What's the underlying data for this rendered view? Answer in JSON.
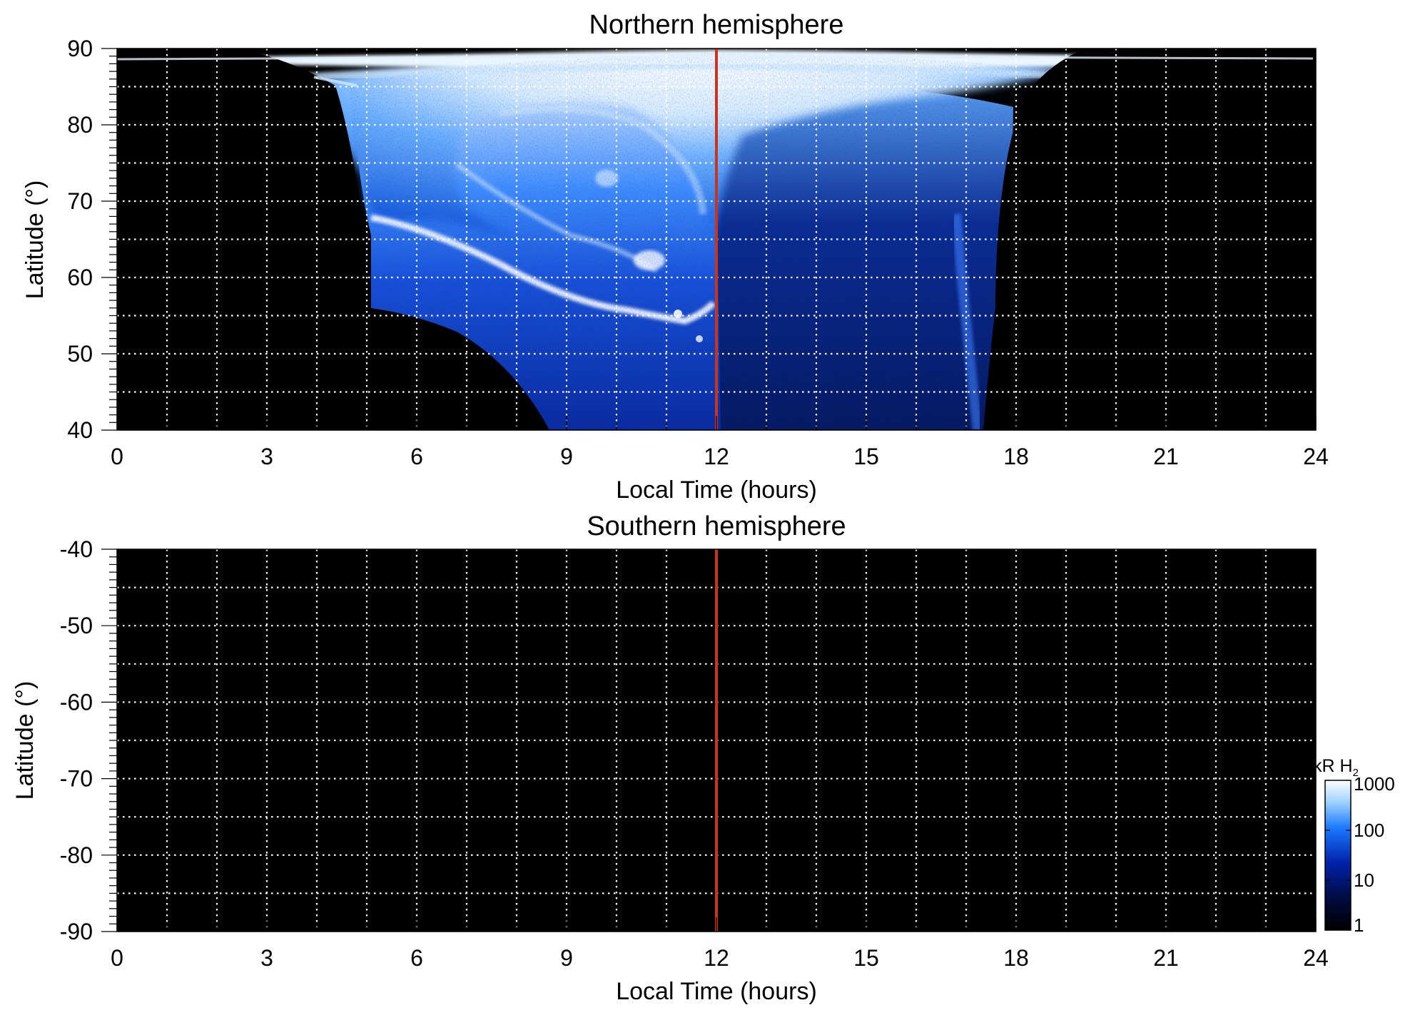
{
  "chart_data": [
    {
      "type": "heatmap",
      "title": "Northern hemisphere",
      "xlabel": "Local Time (hours)",
      "ylabel": "Latitude (°)",
      "xlim": [
        0,
        24
      ],
      "ylim": [
        40,
        90
      ],
      "xticks": [
        "0",
        "3",
        "6",
        "9",
        "12",
        "15",
        "18",
        "21",
        "24"
      ],
      "yticks": [
        "40",
        "50",
        "60",
        "70",
        "80",
        "90"
      ],
      "grid": true,
      "background": "#000000",
      "reference_line": {
        "x": 12,
        "color": "#c8341c"
      },
      "emission_region": {
        "description": "auroral emission polar projection",
        "local_time_range": [
          3.8,
          19.0
        ],
        "low_latitude_cutoff_curve": [
          [
            5.1,
            56
          ],
          [
            6.5,
            54
          ],
          [
            7.5,
            51.5
          ],
          [
            8.5,
            46
          ],
          [
            9,
            40
          ]
        ],
        "features": [
          {
            "kind": "main oval arc",
            "points": [
              [
                5.0,
                67.5
              ],
              [
                6.0,
                66
              ],
              [
                7.5,
                62
              ],
              [
                9.0,
                57
              ],
              [
                10.5,
                55
              ],
              [
                11.5,
                54.5
              ],
              [
                12.0,
                56
              ]
            ]
          },
          {
            "kind": "bright cusp spot",
            "points": [
              [
                11.0,
                62.5
              ]
            ]
          }
        ]
      }
    },
    {
      "type": "heatmap",
      "title": "Southern hemisphere",
      "xlabel": "Local Time (hours)",
      "ylabel": "Latitude (°)",
      "xlim": [
        0,
        24
      ],
      "ylim": [
        -90,
        -40
      ],
      "xticks": [
        "0",
        "3",
        "6",
        "9",
        "12",
        "15",
        "18",
        "21",
        "24"
      ],
      "yticks": [
        "-40",
        "-50",
        "-60",
        "-70",
        "-80",
        "-90"
      ],
      "grid": true,
      "background": "#000000",
      "reference_line": {
        "x": 12,
        "color": "#c8341c"
      }
    }
  ],
  "colorbar": {
    "label_main": "kR H",
    "label_sub": "2",
    "ticks": [
      "1000",
      "100",
      "10",
      "1"
    ],
    "tick_values": [
      1000,
      100,
      10,
      1
    ],
    "scale": "log",
    "colors": [
      "#000000",
      "#000a3c",
      "#0022aa",
      "#1a78ff",
      "#9ad0ff",
      "#ffffff"
    ]
  }
}
